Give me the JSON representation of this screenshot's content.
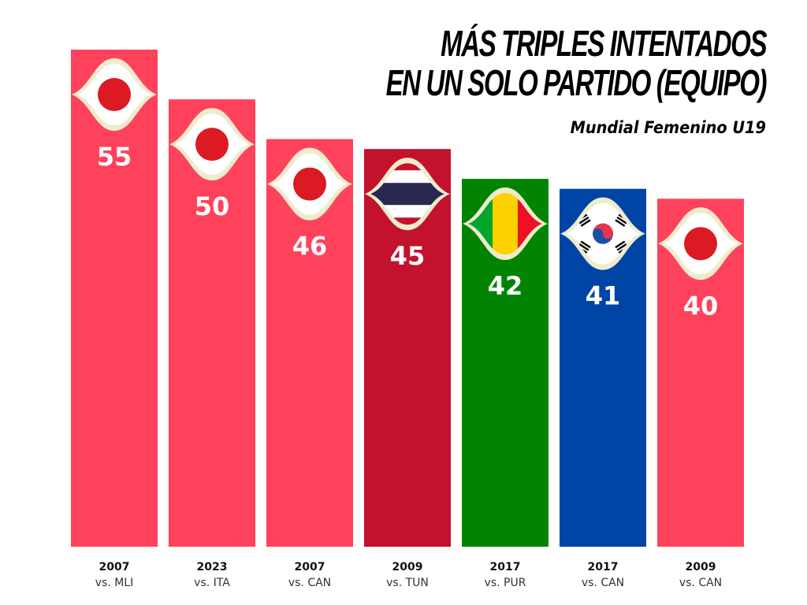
{
  "chart_data": {
    "type": "bar",
    "title": "MÁS TRIPLES INTENTADOS EN UN SOLO PARTIDO (EQUIPO)",
    "title_lines": [
      "MÁS TRIPLES INTENTADOS",
      "EN UN SOLO PARTIDO (EQUIPO)"
    ],
    "subtitle": "Mundial Femenino U19",
    "xlabel": "",
    "ylabel": "",
    "ylim": [
      5,
      55
    ],
    "grid": false,
    "categories": [
      "2007 vs. MLI",
      "2023 vs. ITA",
      "2007 vs. CAN",
      "2009 vs. TUN",
      "2017 vs. PUR",
      "2017 vs. CAN",
      "2009 vs. CAN"
    ],
    "values": [
      55,
      50,
      46,
      45,
      42,
      41,
      40
    ],
    "bars": [
      {
        "year": "2007",
        "opponent": "vs. MLI",
        "value": 55,
        "team": "Japan",
        "flag": "japan-flag",
        "color": "#ff425b"
      },
      {
        "year": "2023",
        "opponent": "vs. ITA",
        "value": 50,
        "team": "Japan",
        "flag": "japan-flag",
        "color": "#ff425b"
      },
      {
        "year": "2007",
        "opponent": "vs. CAN",
        "value": 46,
        "team": "Japan",
        "flag": "japan-flag",
        "color": "#ff425b"
      },
      {
        "year": "2009",
        "opponent": "vs. TUN",
        "value": 45,
        "team": "Thailand",
        "flag": "thailand-flag",
        "color": "#c2122e"
      },
      {
        "year": "2017",
        "opponent": "vs. PUR",
        "value": 42,
        "team": "Mali",
        "flag": "mali-flag",
        "color": "#028402"
      },
      {
        "year": "2017",
        "opponent": "vs. CAN",
        "value": 41,
        "team": "Korea",
        "flag": "korea-flag",
        "color": "#0044a5"
      },
      {
        "year": "2009",
        "opponent": "vs. CAN",
        "value": 40,
        "team": "Japan",
        "flag": "japan-flag",
        "color": "#ff425b"
      }
    ]
  },
  "colors": {
    "badge_border": "#efecce",
    "badge_fill": "#ffffff",
    "japan_red": "#dc1a24",
    "thai_blue": "#2a2850",
    "thai_red": "#c2122e",
    "mali_green": "#00a52b",
    "mali_yellow": "#fdd000",
    "mali_red": "#ee1124",
    "korea_red": "#e8334a",
    "korea_blue": "#1b4fa6"
  }
}
